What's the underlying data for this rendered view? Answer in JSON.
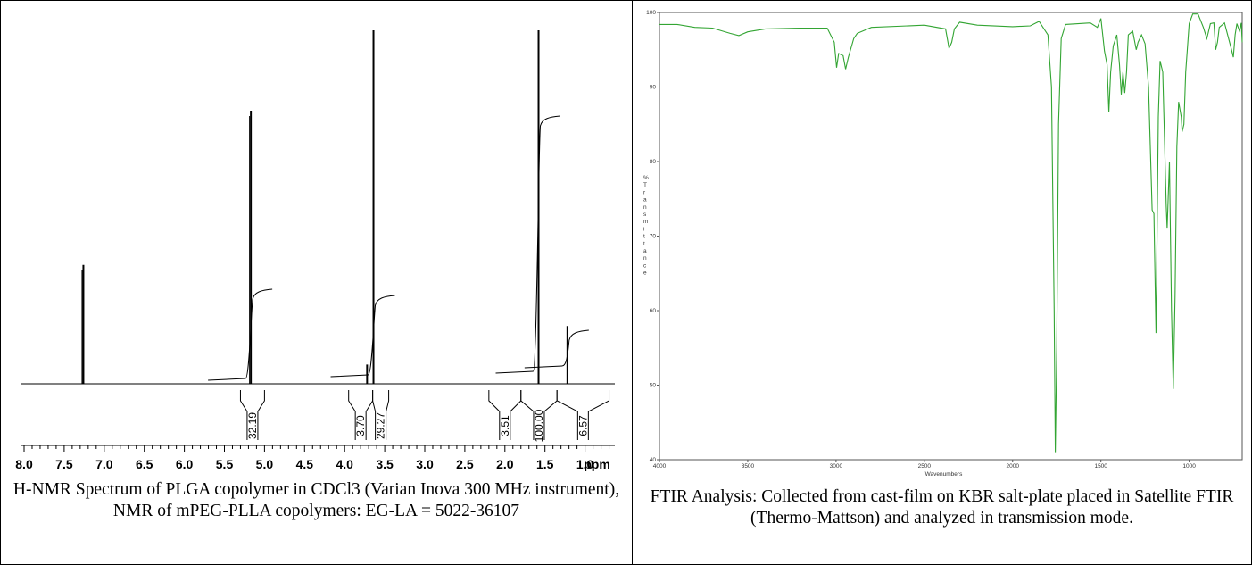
{
  "chart_data": [
    {
      "type": "line",
      "caption": "H-NMR Spectrum of PLGA copolymer in CDCl3 (Varian Inova 300 MHz instrument), NMR of mPEG-PLLA copolymers: EG-LA = 5022-36107",
      "x_unit": "ppm",
      "xlim": [
        8.2,
        0.1
      ],
      "x_ticks": [
        "8.0",
        "7.5",
        "7.0",
        "6.5",
        "6.0",
        "5.5",
        "5.0",
        "4.5",
        "4.0",
        "3.5",
        "3.0",
        "2.5",
        "2.0",
        "1.5",
        "1.0"
      ],
      "ylim": [
        0,
        100
      ],
      "peaks": [
        {
          "ppm": 7.26,
          "height": 37
        },
        {
          "ppm": 5.17,
          "height": 85
        },
        {
          "ppm": 3.72,
          "height": 6
        },
        {
          "ppm": 3.64,
          "height": 110
        },
        {
          "ppm": 1.58,
          "height": 110
        },
        {
          "ppm": 1.22,
          "height": 18
        }
      ],
      "integrals": [
        {
          "label": "32.19",
          "from": 5.3,
          "to": 5.0
        },
        {
          "label": "3.70",
          "from": 3.95,
          "to": 3.65
        },
        {
          "label": "29.27",
          "from": 3.65,
          "to": 3.45
        },
        {
          "label": "3.51",
          "from": 2.2,
          "to": 1.8
        },
        {
          "label": "100.00",
          "from": 1.8,
          "to": 1.35
        },
        {
          "label": "6.57",
          "from": 1.35,
          "to": 0.7
        }
      ]
    },
    {
      "type": "line",
      "caption": "FTIR Analysis: Collected from cast-film on KBR salt-plate placed in Satellite FTIR (Thermo-Mattson) and analyzed in transmission mode.",
      "xlabel": "Wavenumbers",
      "ylabel": "% Transmittance",
      "xlim": [
        4000,
        700
      ],
      "ylim": [
        40,
        100
      ],
      "x_ticks": [
        4000,
        3500,
        3000,
        2500,
        2000,
        1500,
        1000
      ],
      "y_ticks": [
        40,
        50,
        60,
        70,
        80,
        90,
        100
      ],
      "color": "#33a533",
      "points": [
        [
          4000,
          98.4
        ],
        [
          3900,
          98.4
        ],
        [
          3800,
          98.0
        ],
        [
          3700,
          97.9
        ],
        [
          3600,
          97.2
        ],
        [
          3550,
          96.9
        ],
        [
          3500,
          97.4
        ],
        [
          3400,
          97.8
        ],
        [
          3200,
          97.9
        ],
        [
          3050,
          97.9
        ],
        [
          3010,
          96.0
        ],
        [
          2997,
          92.6
        ],
        [
          2985,
          94.5
        ],
        [
          2960,
          94.2
        ],
        [
          2946,
          92.4
        ],
        [
          2930,
          94.0
        ],
        [
          2900,
          96.5
        ],
        [
          2880,
          97.2
        ],
        [
          2800,
          98.0
        ],
        [
          2500,
          98.3
        ],
        [
          2380,
          97.8
        ],
        [
          2360,
          95.2
        ],
        [
          2345,
          96.0
        ],
        [
          2330,
          97.8
        ],
        [
          2300,
          98.7
        ],
        [
          2200,
          98.3
        ],
        [
          2000,
          98.1
        ],
        [
          1900,
          98.2
        ],
        [
          1850,
          98.8
        ],
        [
          1800,
          97.0
        ],
        [
          1780,
          90.0
        ],
        [
          1765,
          60.0
        ],
        [
          1758,
          41.0
        ],
        [
          1750,
          55.0
        ],
        [
          1740,
          85.0
        ],
        [
          1725,
          96.5
        ],
        [
          1700,
          98.4
        ],
        [
          1560,
          98.6
        ],
        [
          1520,
          98.0
        ],
        [
          1500,
          99.2
        ],
        [
          1480,
          94.8
        ],
        [
          1465,
          93.0
        ],
        [
          1455,
          86.6
        ],
        [
          1445,
          92.0
        ],
        [
          1430,
          95.5
        ],
        [
          1410,
          97.0
        ],
        [
          1395,
          93.0
        ],
        [
          1385,
          89.0
        ],
        [
          1375,
          92.0
        ],
        [
          1365,
          89.2
        ],
        [
          1355,
          92.0
        ],
        [
          1345,
          97.0
        ],
        [
          1320,
          97.5
        ],
        [
          1300,
          95.0
        ],
        [
          1290,
          96.0
        ],
        [
          1270,
          97.0
        ],
        [
          1250,
          95.8
        ],
        [
          1230,
          90.0
        ],
        [
          1210,
          73.5
        ],
        [
          1200,
          73.0
        ],
        [
          1188,
          57.0
        ],
        [
          1182,
          70.0
        ],
        [
          1175,
          86.0
        ],
        [
          1165,
          93.5
        ],
        [
          1150,
          92.0
        ],
        [
          1130,
          74.0
        ],
        [
          1125,
          71.0
        ],
        [
          1112,
          80.0
        ],
        [
          1100,
          60.0
        ],
        [
          1090,
          49.5
        ],
        [
          1080,
          62.0
        ],
        [
          1070,
          82.0
        ],
        [
          1060,
          88.0
        ],
        [
          1045,
          86.0
        ],
        [
          1040,
          84.0
        ],
        [
          1030,
          85.0
        ],
        [
          1020,
          92.0
        ],
        [
          1000,
          98.5
        ],
        [
          980,
          99.8
        ],
        [
          950,
          99.8
        ],
        [
          920,
          98.0
        ],
        [
          900,
          96.5
        ],
        [
          880,
          98.5
        ],
        [
          860,
          98.6
        ],
        [
          850,
          95.0
        ],
        [
          840,
          96.0
        ],
        [
          830,
          98.0
        ],
        [
          800,
          98.6
        ],
        [
          760,
          95.0
        ],
        [
          750,
          94.0
        ],
        [
          740,
          97.0
        ],
        [
          730,
          98.5
        ],
        [
          715,
          97.5
        ],
        [
          705,
          98.6
        ],
        [
          700,
          96.0
        ]
      ]
    }
  ]
}
